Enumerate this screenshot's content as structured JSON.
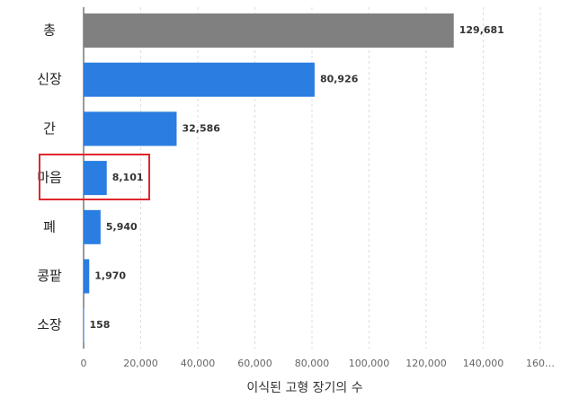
{
  "chart_data": {
    "type": "bar",
    "orientation": "horizontal",
    "x_label": "이식된 고형 장기의 수",
    "categories": [
      "총",
      "신장",
      "간",
      "마음",
      "폐",
      "콩팥",
      "소장"
    ],
    "values": [
      129681,
      80926,
      32586,
      8101,
      5940,
      1970,
      158
    ],
    "value_labels": [
      "129,681",
      "80,926",
      "32,586",
      "8,101",
      "5,940",
      "1,970",
      "158"
    ],
    "colors": [
      "#808080",
      "#2a7de1",
      "#2a7de1",
      "#2a7de1",
      "#2a7de1",
      "#2a7de1",
      "#2a7de1"
    ],
    "xlim": [
      0,
      160000
    ],
    "xticks": [
      0,
      {
        "value": 20000,
        "label": "20,000"
      },
      {
        "value": 40000,
        "label": "40,000"
      },
      {
        "value": 60000,
        "label": "60,000"
      },
      {
        "value": 80000,
        "label": "80,000"
      },
      {
        "value": 100000,
        "label": "100,000"
      },
      {
        "value": 120000,
        "label": "120,000"
      },
      {
        "value": 140000,
        "label": "140,000"
      },
      {
        "value": 160000,
        "label": "160…"
      }
    ],
    "grid": true
  }
}
